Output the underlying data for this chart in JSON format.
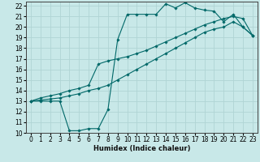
{
  "xlabel": "Humidex (Indice chaleur)",
  "ylabel": "",
  "bg_color": "#c8e8e8",
  "grid_color": "#b0d4d4",
  "line_color": "#006868",
  "xlim": [
    -0.5,
    23.5
  ],
  "ylim": [
    10,
    22.4
  ],
  "xticks": [
    0,
    1,
    2,
    3,
    4,
    5,
    6,
    7,
    8,
    9,
    10,
    11,
    12,
    13,
    14,
    15,
    16,
    17,
    18,
    19,
    20,
    21,
    22,
    23
  ],
  "yticks": [
    10,
    11,
    12,
    13,
    14,
    15,
    16,
    17,
    18,
    19,
    20,
    21,
    22
  ],
  "line1_x": [
    0,
    1,
    2,
    3,
    4,
    5,
    6,
    7,
    8,
    9,
    10,
    11,
    12,
    13,
    14,
    15,
    16,
    17,
    18,
    19,
    20,
    21,
    22,
    23
  ],
  "line1_y": [
    13.0,
    13.0,
    13.0,
    13.0,
    10.2,
    10.2,
    10.4,
    10.4,
    12.2,
    18.8,
    21.2,
    21.2,
    21.2,
    21.2,
    22.2,
    21.8,
    22.3,
    21.8,
    21.6,
    21.5,
    20.5,
    21.2,
    20.0,
    19.2
  ],
  "line2_x": [
    0,
    1,
    2,
    3,
    4,
    5,
    6,
    7,
    8,
    9,
    10,
    11,
    12,
    13,
    14,
    15,
    16,
    17,
    18,
    19,
    20,
    21,
    22,
    23
  ],
  "line2_y": [
    13.0,
    13.3,
    13.5,
    13.7,
    14.0,
    14.2,
    14.5,
    16.5,
    16.8,
    17.0,
    17.2,
    17.5,
    17.8,
    18.2,
    18.6,
    19.0,
    19.4,
    19.8,
    20.2,
    20.5,
    20.8,
    21.0,
    20.8,
    19.2
  ],
  "line3_x": [
    0,
    1,
    2,
    3,
    4,
    5,
    6,
    7,
    8,
    9,
    10,
    11,
    12,
    13,
    14,
    15,
    16,
    17,
    18,
    19,
    20,
    21,
    22,
    23
  ],
  "line3_y": [
    13.0,
    13.1,
    13.2,
    13.3,
    13.5,
    13.7,
    14.0,
    14.2,
    14.5,
    15.0,
    15.5,
    16.0,
    16.5,
    17.0,
    17.5,
    18.0,
    18.5,
    19.0,
    19.5,
    19.8,
    20.0,
    20.5,
    20.0,
    19.2
  ]
}
